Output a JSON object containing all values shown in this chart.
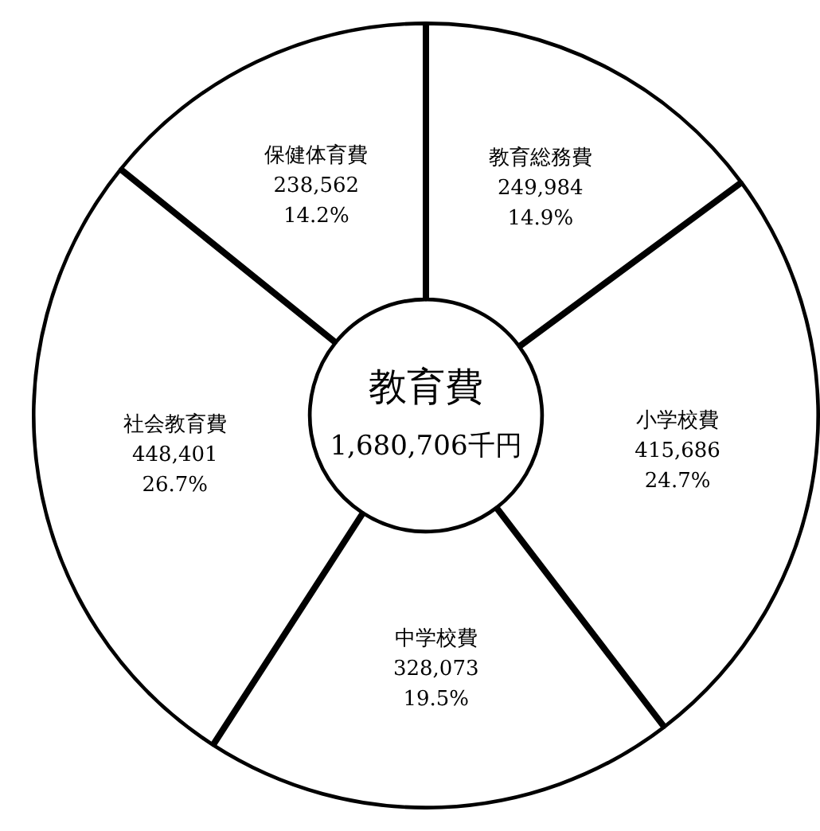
{
  "chart_data": {
    "type": "donut",
    "title": "教育費",
    "subtitle": "1,680,706千円",
    "categories": [
      "教育総務費",
      "小学校費",
      "中学校費",
      "社会教育費",
      "保健体育費"
    ],
    "values": [
      249984,
      415686,
      328073,
      448401,
      238562
    ],
    "colors": [
      "#ffffff",
      "#ffffff",
      "#ffffff",
      "#ffffff",
      "#ffffff"
    ],
    "value_labels": [
      "249,984\n14.9%",
      "415,686\n24.7%",
      "328,073\n19.5%",
      "448,401\n26.7%",
      "238,562\n14.2%"
    ],
    "legend": false
  }
}
